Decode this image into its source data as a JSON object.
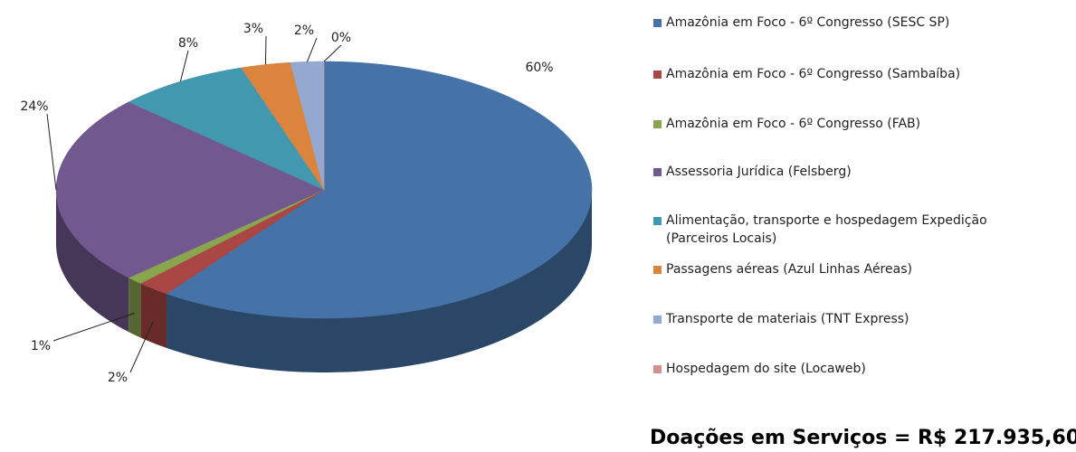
{
  "chart_data": {
    "type": "pie",
    "caption": "Doações em Serviços = R$ 217.935,60",
    "categories": [
      "Amazônia em Foco - 6º Congresso (SESC SP)",
      "Amazônia em Foco - 6º Congresso (Sambaíba)",
      "Amazônia em Foco - 6º Congresso (FAB)",
      "Assessoria Jurídica (Felsberg)",
      "Alimentação, transporte e hospedagem Expedição (Parceiros Locais)",
      "Passagens aéreas (Azul Linhas Aéreas)",
      "Transporte de materiais  (TNT Express)",
      "Hospedagem do site (Locaweb)"
    ],
    "values": [
      60,
      2,
      1,
      24,
      8,
      3,
      2,
      0
    ],
    "value_labels": [
      "60%",
      "2%",
      "1%",
      "24%",
      "8%",
      "3%",
      "2%",
      "0%"
    ],
    "colors": [
      "#4572a7",
      "#aa4643",
      "#89a54e",
      "#71588f",
      "#4198af",
      "#db843d",
      "#93a9cf",
      "#d19392"
    ],
    "legend": "right"
  }
}
